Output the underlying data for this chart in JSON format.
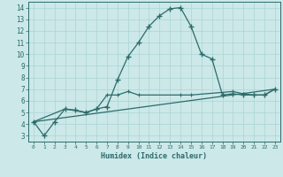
{
  "xlabel": "Humidex (Indice chaleur)",
  "background_color": "#cce8e8",
  "line_color": "#2d6b6b",
  "xlim": [
    -0.5,
    23.5
  ],
  "ylim": [
    2.5,
    14.5
  ],
  "yticks": [
    3,
    4,
    5,
    6,
    7,
    8,
    9,
    10,
    11,
    12,
    13,
    14
  ],
  "xticks": [
    0,
    1,
    2,
    3,
    4,
    5,
    6,
    7,
    8,
    9,
    10,
    11,
    12,
    13,
    14,
    15,
    16,
    17,
    18,
    19,
    20,
    21,
    22,
    23
  ],
  "line1_x": [
    0,
    1,
    2,
    3,
    4,
    5,
    6,
    7,
    8,
    9,
    10,
    11,
    12,
    13,
    14,
    15,
    16,
    17,
    18,
    19,
    20,
    21,
    22,
    23
  ],
  "line1_y": [
    4.2,
    3.0,
    4.2,
    5.3,
    5.2,
    5.0,
    5.3,
    5.5,
    7.8,
    9.8,
    11.0,
    12.4,
    13.3,
    13.9,
    14.0,
    12.4,
    10.0,
    9.6,
    6.5,
    6.6,
    6.5,
    6.5,
    6.5,
    7.0
  ],
  "line2_x": [
    0,
    3,
    5,
    6,
    7,
    8,
    9,
    10,
    14,
    15,
    19,
    20,
    21,
    22,
    23
  ],
  "line2_y": [
    4.2,
    5.3,
    5.0,
    5.3,
    6.5,
    6.5,
    6.8,
    6.5,
    6.5,
    6.5,
    6.8,
    6.6,
    6.5,
    6.5,
    7.0
  ],
  "line3_x": [
    0,
    23
  ],
  "line3_y": [
    4.2,
    7.0
  ],
  "grid_color": "#aad4d4",
  "font_color": "#2d6b6b"
}
